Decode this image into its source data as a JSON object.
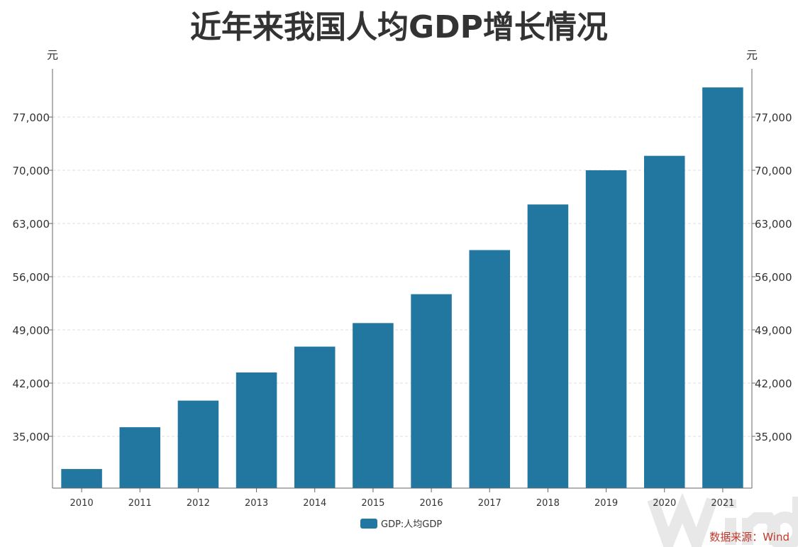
{
  "chart_data": {
    "type": "bar",
    "title": "近年来我国人均GDP增长情况",
    "ylabel_left": "元",
    "ylabel_right": "元",
    "categories": [
      "2010",
      "2011",
      "2012",
      "2013",
      "2014",
      "2015",
      "2016",
      "2017",
      "2018",
      "2019",
      "2020",
      "2021"
    ],
    "series": [
      {
        "name": "GDP:人均GDP",
        "values": [
          30700,
          36200,
          39700,
          43400,
          46800,
          49900,
          53700,
          59500,
          65500,
          70000,
          71900,
          80900
        ]
      }
    ],
    "ylim": [
      28000,
      84000
    ],
    "yticks": [
      35000,
      42000,
      49000,
      56000,
      63000,
      70000,
      77000
    ],
    "ytick_labels": [
      "35,000",
      "42,000",
      "49,000",
      "56,000",
      "63,000",
      "70,000",
      "77,000"
    ],
    "grid": true,
    "legend": "bottom",
    "color": "#2277a0"
  },
  "source": "数据来源：Wind",
  "watermark": "Wind"
}
